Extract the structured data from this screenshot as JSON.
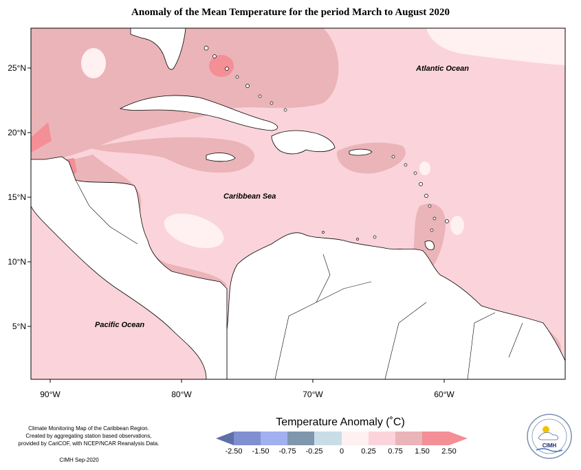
{
  "map": {
    "title": "Anomaly of the Mean Temperature for the period March to August 2020",
    "x_ticks": [
      {
        "value": -90,
        "label": "90°W"
      },
      {
        "value": -80,
        "label": "80°W"
      },
      {
        "value": -70,
        "label": "70°W"
      },
      {
        "value": -60,
        "label": "60°W"
      }
    ],
    "y_ticks": [
      {
        "value": 25,
        "label": "25°N"
      },
      {
        "value": 20,
        "label": "20°N"
      },
      {
        "value": 15,
        "label": "15°N"
      },
      {
        "value": 10,
        "label": "10°N"
      },
      {
        "value": 5,
        "label": "5°N"
      }
    ],
    "labels": {
      "atlantic": "Atlantic Ocean",
      "caribbean": "Caribbean Sea",
      "pacific": "Pacific Ocean"
    }
  },
  "legend": {
    "title": "Temperature Anomaly (˚C)",
    "breaks": [
      "-2.50",
      "-1.50",
      "-0.75",
      "-0.25",
      "0",
      "0.25",
      "0.75",
      "1.50",
      "2.50"
    ],
    "colors": {
      "b1": "#5f6fa8",
      "b2": "#7f8fd0",
      "b3": "#a0b0f0",
      "b4": "#7e97ac",
      "b5": "#c9dde6",
      "b6": "#fff0f1",
      "b7": "#fad4da",
      "b8": "#ebb4b8",
      "b9": "#f38f95"
    }
  },
  "credits": {
    "line1": "Climate Monitoring Map of the Caribbean Region.",
    "line2": "Created by aggregating station based observations,",
    "line3": "provided by CariCOF, with NCEP/NCAR Reanalysis Data.",
    "footer": "CIMH Sep-2020",
    "logo_text": "CIMH"
  }
}
